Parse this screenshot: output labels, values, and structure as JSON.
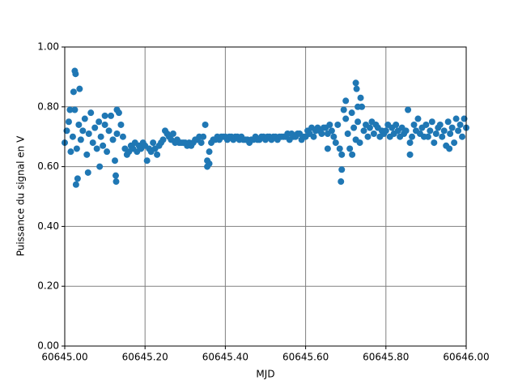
{
  "chart_data": {
    "type": "scatter",
    "xlabel": "MJD",
    "ylabel": "Puissance du signal en V",
    "x": [
      60645.0,
      60645.005,
      60645.01,
      60645.015,
      60645.02,
      60645.025,
      60645.03,
      60645.035,
      60645.04,
      60645.045,
      60645.05,
      60645.055,
      60645.06,
      60645.065,
      60645.07,
      60645.075,
      60645.08,
      60645.085,
      60645.09,
      60645.095,
      60645.1,
      60645.105,
      60645.11,
      60645.115,
      60645.12,
      60645.125,
      60645.13,
      60645.135,
      60645.14,
      60645.145,
      60645.15,
      60645.155,
      60645.16,
      60645.165,
      60645.17,
      60645.175,
      60645.18,
      60645.185,
      60645.19,
      60645.195,
      60645.2,
      60645.205,
      60645.21,
      60645.215,
      60645.22,
      60645.225,
      60645.23,
      60645.235,
      60645.24,
      60645.245,
      60645.25,
      60645.255,
      60645.26,
      60645.265,
      60645.27,
      60645.275,
      60645.28,
      60645.285,
      60645.29,
      60645.295,
      60645.3,
      60645.305,
      60645.31,
      60645.315,
      60645.32,
      60645.325,
      60645.33,
      60645.335,
      60645.34,
      60645.345,
      60645.35,
      60645.355,
      60645.36,
      60645.365,
      60645.37,
      60645.375,
      60645.38,
      60645.385,
      60645.39,
      60645.395,
      60645.4,
      60645.405,
      60645.41,
      60645.415,
      60645.42,
      60645.425,
      60645.43,
      60645.435,
      60645.44,
      60645.445,
      60645.45,
      60645.455,
      60645.46,
      60645.465,
      60645.47,
      60645.475,
      60645.48,
      60645.485,
      60645.49,
      60645.495,
      60645.5,
      60645.505,
      60645.51,
      60645.515,
      60645.52,
      60645.525,
      60645.53,
      60645.535,
      60645.54,
      60645.545,
      60645.55,
      60645.555,
      60645.56,
      60645.565,
      60645.57,
      60645.575,
      60645.58,
      60645.585,
      60645.59,
      60645.595,
      60645.6,
      60645.605,
      60645.61,
      60645.615,
      60645.62,
      60645.625,
      60645.63,
      60645.635,
      60645.64,
      60645.645,
      60645.65,
      60645.655,
      60645.66,
      60645.665,
      60645.67,
      60645.675,
      60645.68,
      60645.685,
      60645.69,
      60645.695,
      60645.7,
      60645.705,
      60645.71,
      60645.715,
      60645.72,
      60645.725,
      60645.73,
      60645.735,
      60645.74,
      60645.745,
      60645.75,
      60645.755,
      60645.76,
      60645.765,
      60645.77,
      60645.775,
      60645.78,
      60645.785,
      60645.79,
      60645.795,
      60645.8,
      60645.805,
      60645.81,
      60645.815,
      60645.82,
      60645.825,
      60645.83,
      60645.835,
      60645.84,
      60645.845,
      60645.85,
      60645.855,
      60645.86,
      60645.865,
      60645.87,
      60645.875,
      60645.88,
      60645.885,
      60645.89,
      60645.895,
      60645.9,
      60645.905,
      60645.91,
      60645.915,
      60645.92,
      60645.925,
      60645.93,
      60645.935,
      60645.94,
      60645.945,
      60645.95,
      60645.955,
      60645.96,
      60645.965,
      60645.97,
      60645.975,
      60645.98,
      60645.985,
      60645.99,
      60645.995,
      60646.0,
      60645.025,
      60645.027,
      60645.022,
      60645.037,
      60645.028,
      60645.032,
      60645.058,
      60645.087,
      60645.128,
      60645.127,
      60645.355,
      60645.36,
      60645.688,
      60645.69,
      60645.716,
      60645.725,
      60645.727,
      60645.73,
      60645.737,
      60645.655,
      60645.7,
      60645.13,
      60645.1,
      60645.013,
      60645.86,
      60645.958
    ],
    "y": [
      0.68,
      0.72,
      0.75,
      0.65,
      0.7,
      0.79,
      0.66,
      0.74,
      0.69,
      0.72,
      0.76,
      0.64,
      0.71,
      0.78,
      0.68,
      0.73,
      0.66,
      0.75,
      0.7,
      0.67,
      0.74,
      0.65,
      0.72,
      0.77,
      0.69,
      0.62,
      0.71,
      0.78,
      0.74,
      0.7,
      0.66,
      0.64,
      0.65,
      0.67,
      0.66,
      0.68,
      0.65,
      0.67,
      0.66,
      0.68,
      0.67,
      0.62,
      0.66,
      0.65,
      0.68,
      0.66,
      0.64,
      0.67,
      0.68,
      0.69,
      0.72,
      0.71,
      0.7,
      0.69,
      0.71,
      0.68,
      0.69,
      0.68,
      0.68,
      0.68,
      0.68,
      0.67,
      0.68,
      0.67,
      0.68,
      0.69,
      0.69,
      0.7,
      0.68,
      0.7,
      0.74,
      0.62,
      0.65,
      0.68,
      0.69,
      0.69,
      0.7,
      0.69,
      0.7,
      0.7,
      0.7,
      0.69,
      0.7,
      0.7,
      0.69,
      0.7,
      0.7,
      0.69,
      0.7,
      0.69,
      0.69,
      0.69,
      0.68,
      0.69,
      0.69,
      0.7,
      0.69,
      0.69,
      0.7,
      0.7,
      0.69,
      0.7,
      0.7,
      0.69,
      0.7,
      0.7,
      0.69,
      0.7,
      0.7,
      0.7,
      0.7,
      0.71,
      0.69,
      0.71,
      0.7,
      0.7,
      0.71,
      0.71,
      0.69,
      0.7,
      0.7,
      0.72,
      0.71,
      0.73,
      0.7,
      0.72,
      0.73,
      0.72,
      0.71,
      0.73,
      0.73,
      0.71,
      0.74,
      0.72,
      0.7,
      0.68,
      0.74,
      0.66,
      0.64,
      0.79,
      0.76,
      0.71,
      0.66,
      0.78,
      0.73,
      0.69,
      0.75,
      0.68,
      0.8,
      0.72,
      0.74,
      0.7,
      0.73,
      0.75,
      0.71,
      0.74,
      0.73,
      0.7,
      0.72,
      0.71,
      0.72,
      0.74,
      0.7,
      0.73,
      0.71,
      0.74,
      0.72,
      0.7,
      0.73,
      0.71,
      0.72,
      0.79,
      0.68,
      0.7,
      0.74,
      0.72,
      0.76,
      0.71,
      0.73,
      0.7,
      0.74,
      0.7,
      0.72,
      0.75,
      0.68,
      0.71,
      0.73,
      0.74,
      0.7,
      0.72,
      0.67,
      0.75,
      0.71,
      0.73,
      0.68,
      0.76,
      0.72,
      0.74,
      0.7,
      0.76,
      0.73,
      0.92,
      0.91,
      0.85,
      0.86,
      0.54,
      0.56,
      0.58,
      0.6,
      0.55,
      0.57,
      0.6,
      0.61,
      0.55,
      0.59,
      0.64,
      0.88,
      0.86,
      0.8,
      0.83,
      0.66,
      0.82,
      0.79,
      0.77,
      0.79,
      0.64,
      0.66
    ],
    "color": "#1f77b4",
    "xlim": [
      60645.0,
      60646.0
    ],
    "xticks": [
      {
        "value": 60645.0,
        "label": "60645.00"
      },
      {
        "value": 60645.2,
        "label": "60645.20"
      },
      {
        "value": 60645.4,
        "label": "60645.40"
      },
      {
        "value": 60645.6,
        "label": "60645.60"
      },
      {
        "value": 60645.8,
        "label": "60645.80"
      },
      {
        "value": 60646.0,
        "label": "60646.00"
      }
    ],
    "ylim": [
      0,
      1
    ],
    "yticks": [
      {
        "value": 0,
        "label": "0.00"
      },
      {
        "value": 0.2,
        "label": "0.20"
      },
      {
        "value": 0.4,
        "label": "0.40"
      },
      {
        "value": 0.6,
        "label": "0.60"
      },
      {
        "value": 0.8,
        "label": "0.80"
      },
      {
        "value": 1,
        "label": "1.00"
      }
    ],
    "grid": true
  }
}
